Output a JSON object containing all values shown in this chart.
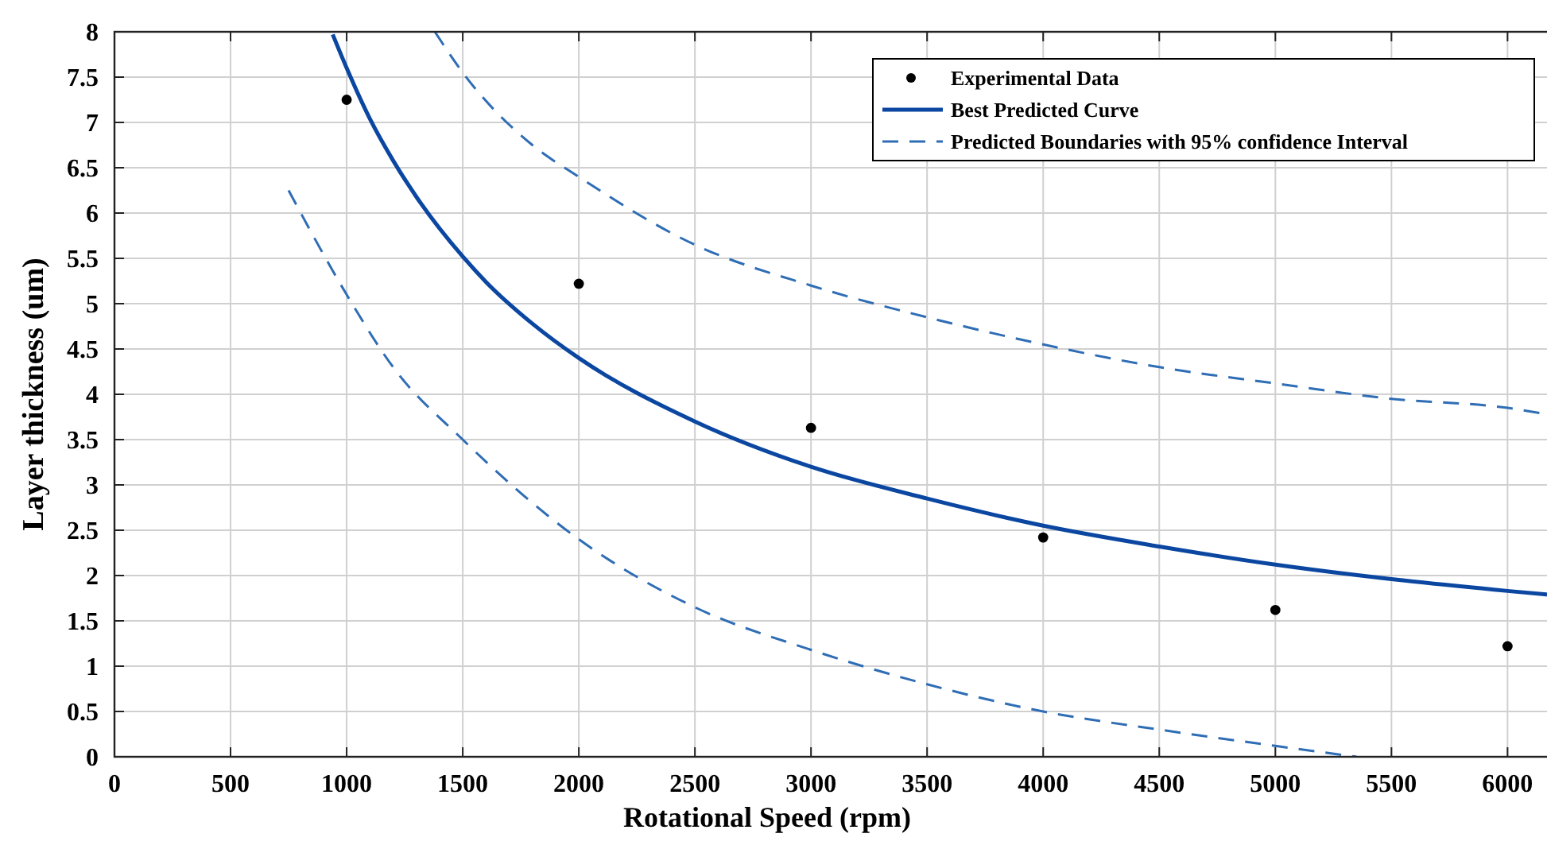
{
  "chart_data": {
    "type": "line",
    "xlabel": "Rotational Speed (rpm)",
    "ylabel": "Layer thickness (um)",
    "xlim": [
      0,
      6170
    ],
    "xticks": [
      0,
      500,
      1000,
      1500,
      2000,
      2500,
      3000,
      3500,
      4000,
      4500,
      5000,
      5500,
      6000
    ],
    "ylim": [
      0,
      8
    ],
    "yticks": [
      0,
      0.5,
      1,
      1.5,
      2,
      2.5,
      3,
      3.5,
      4,
      4.5,
      5,
      5.5,
      6,
      6.5,
      7,
      7.5,
      8
    ],
    "grid": true,
    "legend": "top right",
    "series": [
      {
        "name": "Experimental Data",
        "type": "scatter",
        "marker": "circle",
        "color": "#000000",
        "x": [
          1000,
          2000,
          3000,
          4000,
          5000,
          6000
        ],
        "values": [
          7.25,
          5.22,
          3.63,
          2.42,
          1.62,
          1.22
        ]
      },
      {
        "name": "Best Predicted Curve",
        "line_style": "solid",
        "color": "#0b47a1",
        "x": [
          940,
          1000,
          1100,
          1200,
          1300,
          1500,
          1600,
          1800,
          2000,
          2500,
          3000,
          3500,
          4000,
          4500,
          5000,
          5500,
          6000,
          6170
        ],
        "values": [
          7.97,
          7.6,
          7.04,
          6.58,
          6.18,
          5.52,
          5.24,
          4.78,
          4.4,
          3.7,
          3.2,
          2.85,
          2.55,
          2.32,
          2.12,
          1.96,
          1.83,
          1.79
        ]
      },
      {
        "name": "Predicted Boundaries with 95% confidence Interval",
        "line_style": "dashed",
        "color": "#2f6db5",
        "x": [
          1380,
          1500,
          1800,
          2000,
          2500,
          3000,
          3500,
          4000,
          4500,
          5000,
          5500,
          6000,
          6170
        ],
        "values": [
          8,
          7.55,
          6.75,
          6.4,
          5.65,
          5.2,
          4.85,
          4.55,
          4.3,
          4.12,
          3.95,
          3.85,
          3.78
        ]
      },
      {
        "line_style": "dashed",
        "color": "#2f6db5",
        "x": [
          750,
          1000,
          1200,
          1500,
          2000,
          2500,
          3000,
          3500,
          4000,
          4500,
          5000,
          5350
        ],
        "values": [
          6.25,
          5.1,
          4.3,
          3.5,
          2.4,
          1.65,
          1.18,
          0.8,
          0.5,
          0.3,
          0.12,
          0
        ]
      }
    ]
  }
}
